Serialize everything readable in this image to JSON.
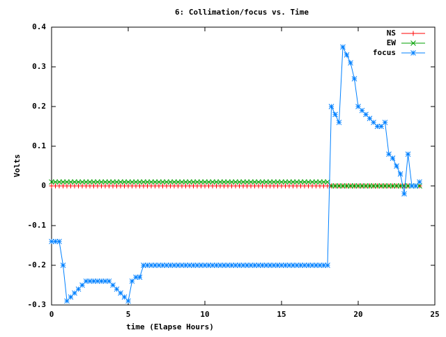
{
  "chart_data": {
    "type": "line",
    "title": "6: Collimation/focus vs. Time",
    "x_label": "time (Elapse Hours)",
    "y_label": "Volts",
    "xlim": [
      0,
      25
    ],
    "ylim": [
      -0.3,
      0.4
    ],
    "xticks": [
      0,
      5,
      10,
      15,
      20,
      25
    ],
    "yticks": [
      -0.3,
      -0.2,
      -0.1,
      0,
      0.1,
      0.2,
      0.3,
      0.4
    ],
    "legend_position": "top-right",
    "x": [
      0,
      0.25,
      0.5,
      0.75,
      1,
      1.25,
      1.5,
      1.75,
      2,
      2.25,
      2.5,
      2.75,
      3,
      3.25,
      3.5,
      3.75,
      4,
      4.25,
      4.5,
      4.75,
      5,
      5.25,
      5.5,
      5.75,
      6,
      6.25,
      6.5,
      6.75,
      7,
      7.25,
      7.5,
      7.75,
      8,
      8.25,
      8.5,
      8.75,
      9,
      9.25,
      9.5,
      9.75,
      10,
      10.25,
      10.5,
      10.75,
      11,
      11.25,
      11.5,
      11.75,
      12,
      12.25,
      12.5,
      12.75,
      13,
      13.25,
      13.5,
      13.75,
      14,
      14.25,
      14.5,
      14.75,
      15,
      15.25,
      15.5,
      15.75,
      16,
      16.25,
      16.5,
      16.75,
      17,
      17.25,
      17.5,
      17.75,
      18,
      18.25,
      18.5,
      18.75,
      19,
      19.25,
      19.5,
      19.75,
      20,
      20.25,
      20.5,
      20.75,
      21,
      21.25,
      21.5,
      21.75,
      22,
      22.25,
      22.5,
      22.75,
      23,
      23.25,
      23.5,
      23.75,
      24
    ],
    "series": [
      {
        "name": "NS",
        "color": "#ff0000",
        "marker": "plus",
        "values": [
          0,
          0,
          0,
          0,
          0,
          0,
          0,
          0,
          0,
          0,
          0,
          0,
          0,
          0,
          0,
          0,
          0,
          0,
          0,
          0,
          0,
          0,
          0,
          0,
          0,
          0,
          0,
          0,
          0,
          0,
          0,
          0,
          0,
          0,
          0,
          0,
          0,
          0,
          0,
          0,
          0,
          0,
          0,
          0,
          0,
          0,
          0,
          0,
          0,
          0,
          0,
          0,
          0,
          0,
          0,
          0,
          0,
          0,
          0,
          0,
          0,
          0,
          0,
          0,
          0,
          0,
          0,
          0,
          0,
          0,
          0,
          0,
          0,
          0,
          0,
          0,
          0,
          0,
          0,
          0,
          0,
          0,
          0,
          0,
          0,
          0,
          0,
          0,
          0,
          0,
          0,
          0,
          0,
          0,
          0,
          0,
          0
        ]
      },
      {
        "name": "EW",
        "color": "#00a000",
        "marker": "cross",
        "values": [
          0.01,
          0.01,
          0.01,
          0.01,
          0.01,
          0.01,
          0.01,
          0.01,
          0.01,
          0.01,
          0.01,
          0.01,
          0.01,
          0.01,
          0.01,
          0.01,
          0.01,
          0.01,
          0.01,
          0.01,
          0.01,
          0.01,
          0.01,
          0.01,
          0.01,
          0.01,
          0.01,
          0.01,
          0.01,
          0.01,
          0.01,
          0.01,
          0.01,
          0.01,
          0.01,
          0.01,
          0.01,
          0.01,
          0.01,
          0.01,
          0.01,
          0.01,
          0.01,
          0.01,
          0.01,
          0.01,
          0.01,
          0.01,
          0.01,
          0.01,
          0.01,
          0.01,
          0.01,
          0.01,
          0.01,
          0.01,
          0.01,
          0.01,
          0.01,
          0.01,
          0.01,
          0.01,
          0.01,
          0.01,
          0.01,
          0.01,
          0.01,
          0.01,
          0.01,
          0.01,
          0.01,
          0.01,
          0.01,
          0,
          0,
          0,
          0,
          0,
          0,
          0,
          0,
          0,
          0,
          0,
          0,
          0,
          0,
          0,
          0,
          0,
          0,
          0,
          0,
          0,
          0,
          0,
          0
        ]
      },
      {
        "name": "focus",
        "color": "#0080ff",
        "marker": "star",
        "values": [
          -0.14,
          -0.14,
          -0.14,
          -0.2,
          -0.29,
          -0.28,
          -0.27,
          -0.26,
          -0.25,
          -0.24,
          -0.24,
          -0.24,
          -0.24,
          -0.24,
          -0.24,
          -0.24,
          -0.25,
          -0.26,
          -0.27,
          -0.28,
          -0.29,
          -0.24,
          -0.23,
          -0.23,
          -0.2,
          -0.2,
          -0.2,
          -0.2,
          -0.2,
          -0.2,
          -0.2,
          -0.2,
          -0.2,
          -0.2,
          -0.2,
          -0.2,
          -0.2,
          -0.2,
          -0.2,
          -0.2,
          -0.2,
          -0.2,
          -0.2,
          -0.2,
          -0.2,
          -0.2,
          -0.2,
          -0.2,
          -0.2,
          -0.2,
          -0.2,
          -0.2,
          -0.2,
          -0.2,
          -0.2,
          -0.2,
          -0.2,
          -0.2,
          -0.2,
          -0.2,
          -0.2,
          -0.2,
          -0.2,
          -0.2,
          -0.2,
          -0.2,
          -0.2,
          -0.2,
          -0.2,
          -0.2,
          -0.2,
          -0.2,
          -0.2,
          0.2,
          0.18,
          0.16,
          0.35,
          0.33,
          0.31,
          0.27,
          0.2,
          0.19,
          0.18,
          0.17,
          0.16,
          0.15,
          0.15,
          0.16,
          0.08,
          0.07,
          0.05,
          0.03,
          -0.02,
          0.08,
          0,
          0,
          0.01
        ]
      }
    ]
  }
}
